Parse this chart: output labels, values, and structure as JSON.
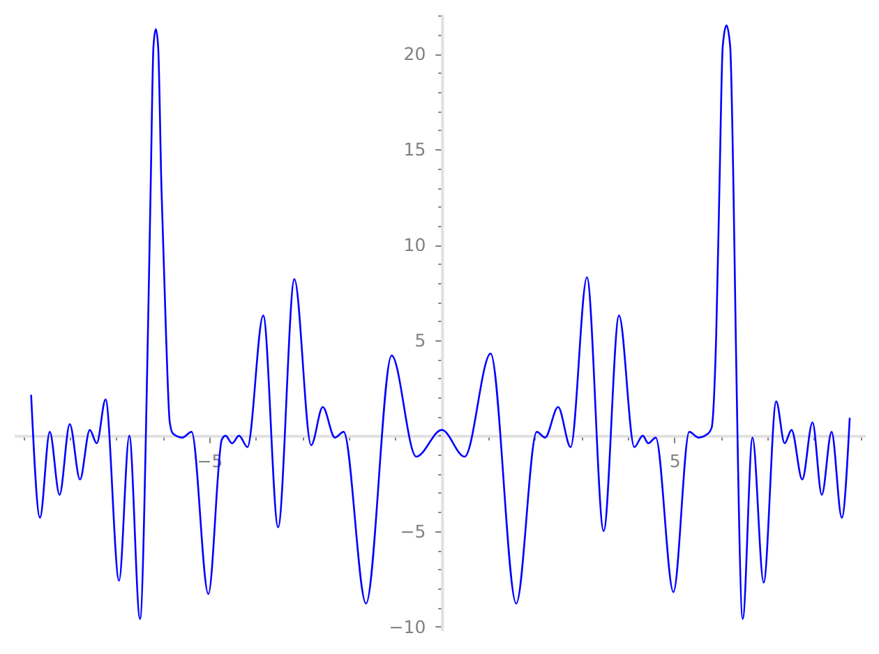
{
  "chart_data": {
    "type": "line",
    "line_style": "solid",
    "grid": false,
    "x": [
      -8.83,
      -8.64,
      -8.43,
      -8.22,
      -8.0,
      -7.78,
      -7.57,
      -7.42,
      -7.23,
      -6.94,
      -6.72,
      -6.49,
      -6.32,
      -6.26,
      -6.2,
      -6.15,
      -6.1,
      -6.03,
      -5.93,
      -5.85,
      -5.78,
      -5.58,
      -5.38,
      -5.02,
      -4.73,
      -4.65,
      -4.51,
      -4.36,
      -4.18,
      -3.84,
      -3.52,
      -3.17,
      -2.81,
      -2.56,
      -2.3,
      -2.11,
      -1.63,
      -1.08,
      -0.55,
      0.0,
      0.49,
      1.05,
      1.6,
      2.04,
      2.22,
      2.5,
      2.77,
      3.12,
      3.48,
      3.81,
      4.14,
      4.32,
      4.44,
      4.6,
      4.98,
      5.32,
      5.52,
      5.72,
      5.8,
      5.9,
      5.97,
      6.04,
      6.12,
      6.2,
      6.27,
      6.32,
      6.47,
      6.68,
      6.92,
      7.19,
      7.37,
      7.52,
      7.75,
      7.97,
      8.17,
      8.38,
      8.6,
      8.77
    ],
    "series": [
      {
        "color": "#0000ff",
        "values": [
          2.1,
          -4.3,
          0.2,
          -3.1,
          0.6,
          -2.3,
          0.3,
          -0.4,
          1.9,
          -7.6,
          0.0,
          -9.6,
          5.3,
          13.1,
          20.4,
          21.3,
          20.4,
          13.1,
          5.3,
          0.7,
          0.1,
          -0.1,
          0.2,
          -8.3,
          -0.2,
          0.0,
          -0.4,
          0.0,
          -0.6,
          6.3,
          -4.8,
          8.2,
          -0.5,
          1.5,
          -0.1,
          0.2,
          -8.8,
          4.2,
          -1.1,
          0.3,
          -1.1,
          4.3,
          -8.8,
          0.2,
          -0.1,
          1.5,
          -0.6,
          8.3,
          -5.0,
          6.3,
          -0.6,
          0.0,
          -0.4,
          -0.1,
          -8.2,
          0.2,
          -0.1,
          0.1,
          0.4,
          5.3,
          13.1,
          20.4,
          21.5,
          20.4,
          13.1,
          5.3,
          -9.6,
          -0.1,
          -7.7,
          1.8,
          -0.4,
          0.3,
          -2.3,
          0.7,
          -3.1,
          0.2,
          -4.3,
          0.9
        ]
      }
    ],
    "xlim": [
      -9.2,
      9.1
    ],
    "ylim": [
      -10.2,
      22.1
    ],
    "xticks": [
      {
        "value": -9,
        "label": null
      },
      {
        "value": -8,
        "label": null
      },
      {
        "value": -7,
        "label": null
      },
      {
        "value": -6,
        "label": null
      },
      {
        "value": -5,
        "label": "−5"
      },
      {
        "value": -4,
        "label": null
      },
      {
        "value": -3,
        "label": null
      },
      {
        "value": -2,
        "label": null
      },
      {
        "value": -1,
        "label": null
      },
      {
        "value": 0,
        "label": null
      },
      {
        "value": 1,
        "label": null
      },
      {
        "value": 2,
        "label": null
      },
      {
        "value": 3,
        "label": null
      },
      {
        "value": 4,
        "label": null
      },
      5,
      {
        "value": 6,
        "label": null
      },
      {
        "value": 7,
        "label": null
      },
      {
        "value": 8,
        "label": null
      },
      {
        "value": 9,
        "label": null
      }
    ],
    "yticks": [
      {
        "value": -10,
        "label": "−10"
      },
      {
        "value": -9,
        "label": null
      },
      {
        "value": -8,
        "label": null
      },
      {
        "value": -7,
        "label": null
      },
      {
        "value": -6,
        "label": null
      },
      {
        "value": -5,
        "label": "−5"
      },
      {
        "value": -4,
        "label": null
      },
      {
        "value": -3,
        "label": null
      },
      {
        "value": -2,
        "label": null
      },
      {
        "value": -1,
        "label": null
      },
      {
        "value": 0,
        "label": null
      },
      {
        "value": 1,
        "label": null
      },
      {
        "value": 2,
        "label": null
      },
      {
        "value": 3,
        "label": null
      },
      {
        "value": 4,
        "label": null
      },
      5,
      {
        "value": 6,
        "label": null
      },
      {
        "value": 7,
        "label": null
      },
      {
        "value": 8,
        "label": null
      },
      {
        "value": 9,
        "label": null
      },
      10,
      {
        "value": 11,
        "label": null
      },
      {
        "value": 12,
        "label": null
      },
      {
        "value": 13,
        "label": null
      },
      {
        "value": 14,
        "label": null
      },
      15,
      {
        "value": 16,
        "label": null
      },
      {
        "value": 17,
        "label": null
      },
      {
        "value": 18,
        "label": null
      },
      {
        "value": 19,
        "label": null
      },
      20,
      {
        "value": 21,
        "label": null
      },
      {
        "value": 22,
        "label": null
      }
    ]
  }
}
